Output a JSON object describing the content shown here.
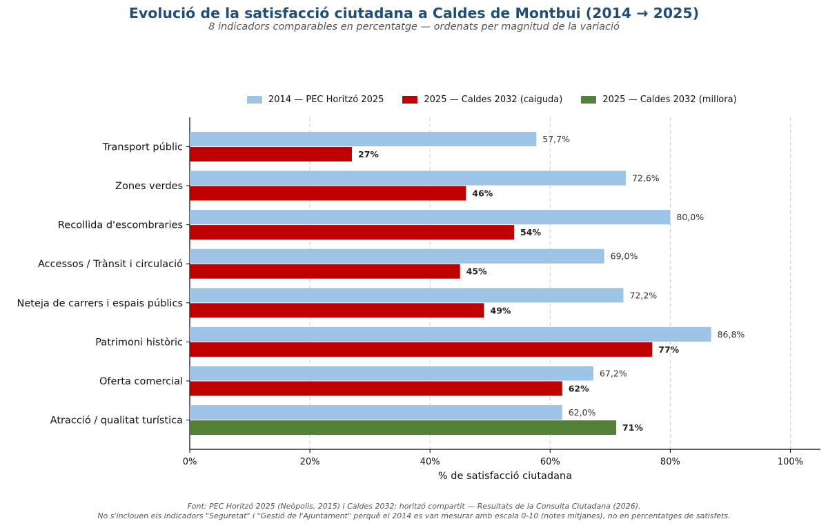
{
  "chart_data": {
    "type": "bar",
    "orientation": "horizontal",
    "title": "Evolució de la satisfacció ciutadana a Caldes de Montbui (2014 → 2025)",
    "subtitle": "8 indicadors comparables en percentatge — ordenats per magnitud de la variació",
    "xlabel": "% de satisfacció ciutadana",
    "xlim": [
      0,
      105
    ],
    "xticks": [
      0,
      20,
      40,
      60,
      80,
      100
    ],
    "xtick_labels": [
      "0%",
      "20%",
      "40%",
      "60%",
      "80%",
      "100%"
    ],
    "grid": "vertical dashed",
    "legend_placement": "top",
    "categories": [
      "Transport públic",
      "Zones verdes",
      "Recollida d'escombraries",
      "Accessos / Trànsit i circulació",
      "Neteja de carrers i espais públics",
      "Patrimoni històric",
      "Oferta comercial",
      "Atracció / qualitat turística"
    ],
    "series": [
      {
        "name": "2014 — PEC Horitzó 2025",
        "color": "#9dc3e6",
        "values": [
          57.7,
          72.6,
          80.0,
          69.0,
          72.2,
          86.8,
          67.2,
          62.0
        ],
        "labels": [
          "57,7%",
          "72,6%",
          "80,0%",
          "69,0%",
          "72,2%",
          "86,8%",
          "67,2%",
          "62,0%"
        ]
      },
      {
        "name": "2025 — Caldes 2032",
        "values": [
          27,
          46,
          54,
          45,
          49,
          77,
          62,
          71
        ],
        "labels": [
          "27%",
          "46%",
          "54%",
          "45%",
          "49%",
          "77%",
          "62%",
          "71%"
        ],
        "colors": [
          "#c00000",
          "#c00000",
          "#c00000",
          "#c00000",
          "#c00000",
          "#c00000",
          "#c00000",
          "#538135"
        ]
      }
    ],
    "legend": [
      {
        "label": "2014 — PEC Horitzó 2025",
        "color": "#9dc3e6"
      },
      {
        "label": "2025 — Caldes 2032 (caiguda)",
        "color": "#c00000"
      },
      {
        "label": "2025 — Caldes 2032 (millora)",
        "color": "#538135"
      }
    ]
  },
  "footer": {
    "line1": "Font: PEC Horitzó 2025 (Neòpolis, 2015) i Caldes 2032: horitzó compartit — Resultats de la Consulta Ciutadana (2026).",
    "line2": "No s'inclouen els indicadors \"Seguretat\" i \"Gestió de l'Ajuntament\" perquè el 2014 es van mesurar amb escala 0-10 (notes mitjanes), no en percentatges de satisfets."
  }
}
